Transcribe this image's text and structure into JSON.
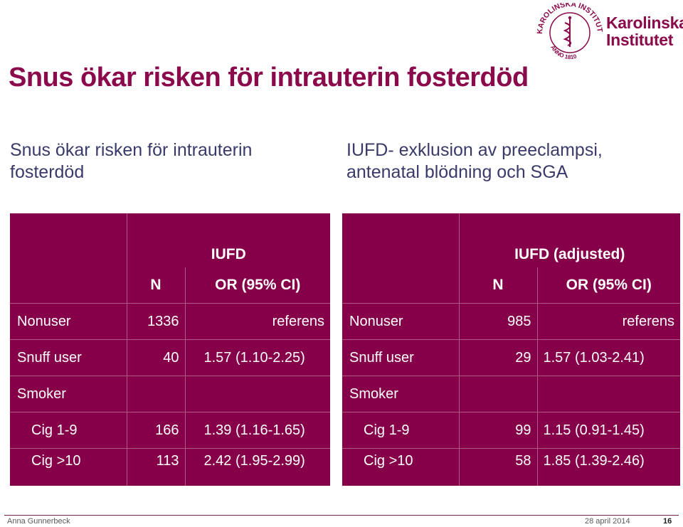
{
  "title": "Snus ökar risken för intrauterin fosterdöd",
  "subtitle_left": [
    "Snus ökar risken för intrauterin",
    "fosterdöd"
  ],
  "subtitle_right": [
    "IUFD- exklusion av preeclampsi,",
    "antenatal blödning och SGA"
  ],
  "logo": {
    "seal_text": "KAROLINSKA INSTITUTET",
    "seal_year": "ANNO 1810",
    "name_line1": "Karolinska",
    "name_line2": "Institutet"
  },
  "table_left": {
    "group_header": "IUFD",
    "col_n": "N",
    "col_or": "OR (95% CI)",
    "rows": [
      {
        "label": "Nonuser",
        "n": "1336",
        "or": "referens"
      },
      {
        "label": "Snuff user",
        "n": "40",
        "or": "1.57 (1.10-2.25)"
      },
      {
        "label": "Smoker",
        "n": "",
        "or": ""
      },
      {
        "label": "Cig 1-9",
        "n": "166",
        "or": "1.39 (1.16-1.65)"
      },
      {
        "label": "Cig >10",
        "n": "113",
        "or": "2.42 (1.95-2.99)"
      }
    ]
  },
  "table_right": {
    "group_header": "IUFD (adjusted)",
    "col_n": "N",
    "col_or": "OR (95% CI)",
    "rows": [
      {
        "label": "Nonuser",
        "n": "985",
        "or": "referens"
      },
      {
        "label": "Snuff user",
        "n": "29",
        "or": "1.57 (1.03-2.41)"
      },
      {
        "label": "Smoker",
        "n": "",
        "or": ""
      },
      {
        "label": "Cig 1-9",
        "n": "99",
        "or": "1.15 (0.91-1.45)"
      },
      {
        "label": "Cig >10",
        "n": "58",
        "or": "1.85 (1.39-2.46)"
      }
    ]
  },
  "footer": {
    "author": "Anna Gunnerbeck",
    "date": "28 april 2014",
    "page": "16"
  },
  "colors": {
    "accent": "#850048",
    "title": "#8a0a4c",
    "subtitle": "#3a3a6a"
  }
}
